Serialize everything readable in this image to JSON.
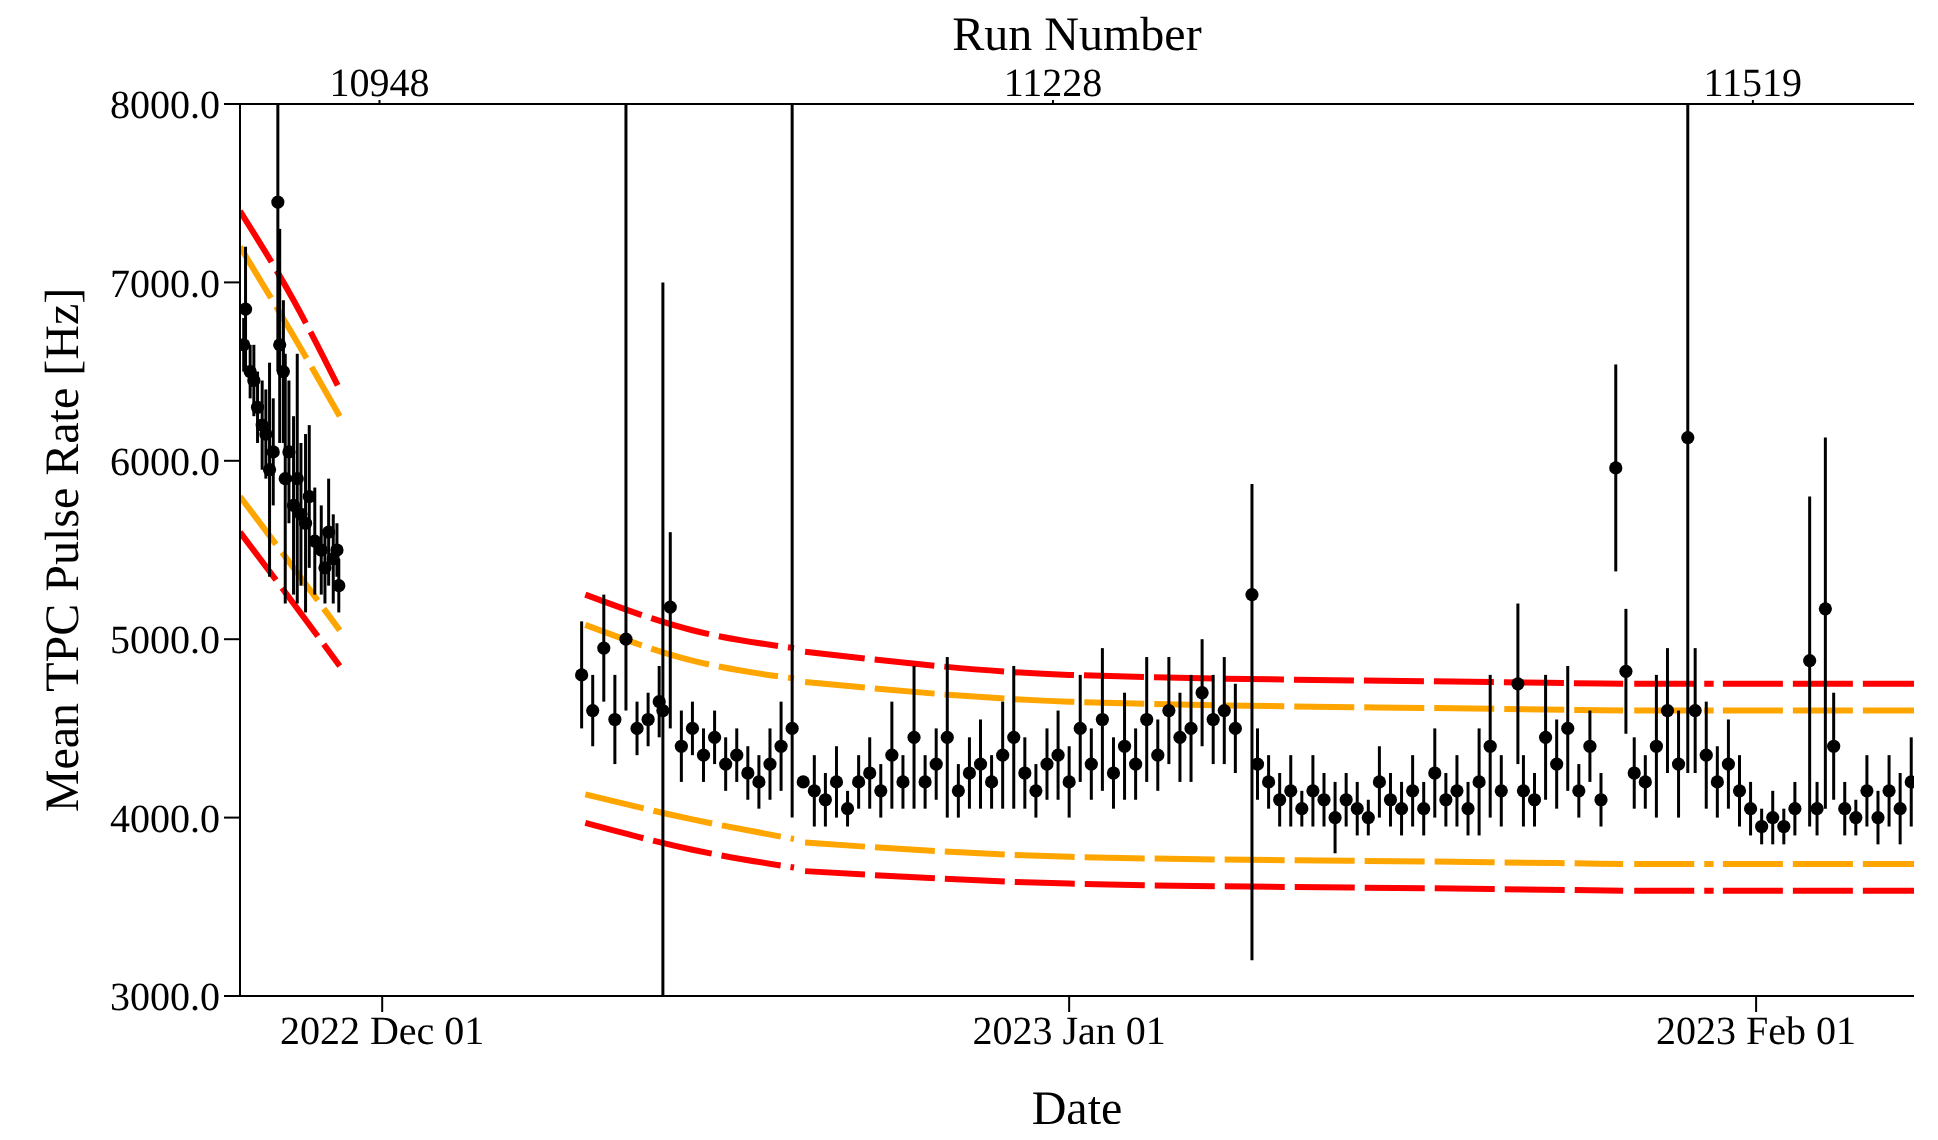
{
  "chart_data": {
    "type": "scatter",
    "xlabel": "Date",
    "ylabel": "Mean TPC Pulse Rate [Hz]",
    "x2label": "Run Number",
    "xlim": [
      "2022-11-24T14:00",
      "2023-02-08T03:00"
    ],
    "xticks": [
      {
        "value": "2022-12-01",
        "label": "2022 Dec 01"
      },
      {
        "value": "2023-01-01",
        "label": "2023 Jan 01"
      },
      {
        "value": "2023-02-01",
        "label": "2023 Feb 01"
      }
    ],
    "x2lim": [
      10890,
      11586
    ],
    "x2ticks": [
      10948,
      11228,
      11519
    ],
    "ylim": [
      3000,
      8000
    ],
    "yticks": [
      {
        "value": 3000,
        "label": "3000.0"
      },
      {
        "value": 4000,
        "label": "4000.0"
      },
      {
        "value": 5000,
        "label": "5000.0"
      },
      {
        "value": 6000,
        "label": "6000.0"
      },
      {
        "value": 7000,
        "label": "7000.0"
      },
      {
        "value": 8000,
        "label": "8000.0"
      }
    ],
    "grid": false,
    "legend": false,
    "series": [
      {
        "type": "line",
        "color": "#ff0000",
        "line_style": "dashed",
        "x": [
          "2022-11-24T14:00",
          "2022-11-27T00:00",
          "2022-11-29T02:00",
          "2022-12-05T00:00",
          "2022-12-10T04:00",
          "2022-12-15T00:00",
          "2022-12-19T14:00",
          "2022-12-19T20:00",
          "2022-12-20T02:00",
          "2023-01-01T00:00",
          "2023-01-20T00:00",
          "2023-01-26T00:00",
          "2023-01-26T06:00",
          "2023-01-26T12:00",
          "2023-01-30T02:00",
          "2023-01-30T06:00",
          "2023-01-30T12:00",
          "2023-02-08T03:00"
        ],
        "values": [
          7400,
          6900,
          6400,
          null,
          5250,
          5050,
          4950,
          null,
          4930,
          4800,
          4760,
          4750,
          null,
          4750,
          4750,
          null,
          4750,
          4750
        ]
      },
      {
        "type": "line",
        "color": "#ffa500",
        "line_style": "dashed",
        "x": [
          "2022-11-24T14:00",
          "2022-11-27T00:00",
          "2022-11-29T02:00",
          "2022-12-05T00:00",
          "2022-12-10T04:00",
          "2022-12-15T00:00",
          "2022-12-19T14:00",
          "2022-12-19T20:00",
          "2022-12-20T02:00",
          "2023-01-01T00:00",
          "2023-01-20T00:00",
          "2023-01-26T00:00",
          "2023-01-26T06:00",
          "2023-01-26T12:00",
          "2023-01-30T02:00",
          "2023-01-30T06:00",
          "2023-01-30T12:00",
          "2023-02-08T03:00"
        ],
        "values": [
          7200,
          6700,
          6250,
          null,
          5080,
          4880,
          4780,
          null,
          4760,
          4650,
          4610,
          4600,
          null,
          4600,
          4600,
          null,
          4600,
          4600
        ]
      },
      {
        "type": "line",
        "color": "#ffa500",
        "line_style": "dashed",
        "x": [
          "2022-11-24T14:00",
          "2022-11-27T00:00",
          "2022-11-29T02:00",
          "2022-12-05T00:00",
          "2022-12-10T04:00",
          "2022-12-15T00:00",
          "2022-12-19T14:00",
          "2022-12-19T20:00",
          "2022-12-20T02:00",
          "2023-01-01T00:00",
          "2023-01-20T00:00",
          "2023-01-26T00:00",
          "2023-01-26T06:00",
          "2023-01-26T12:00",
          "2023-01-30T02:00",
          "2023-01-30T06:00",
          "2023-01-30T12:00",
          "2023-02-08T03:00"
        ],
        "values": [
          5800,
          5400,
          5050,
          null,
          4130,
          3990,
          3880,
          null,
          3860,
          3780,
          3750,
          3740,
          null,
          3740,
          3740,
          null,
          3740,
          3740
        ]
      },
      {
        "type": "line",
        "color": "#ff0000",
        "line_style": "dashed",
        "x": [
          "2022-11-24T14:00",
          "2022-11-27T00:00",
          "2022-11-29T02:00",
          "2022-12-05T00:00",
          "2022-12-10T04:00",
          "2022-12-15T00:00",
          "2022-12-19T14:00",
          "2022-12-19T20:00",
          "2022-12-20T02:00",
          "2023-01-01T00:00",
          "2023-01-20T00:00",
          "2023-01-26T00:00",
          "2023-01-26T06:00",
          "2023-01-26T12:00",
          "2023-01-30T02:00",
          "2023-01-30T06:00",
          "2023-01-30T12:00",
          "2023-02-08T03:00"
        ],
        "values": [
          5600,
          5200,
          4850,
          null,
          3970,
          3820,
          3720,
          null,
          3700,
          3630,
          3600,
          3590,
          null,
          3590,
          3590,
          null,
          3590,
          3590
        ]
      },
      {
        "color": "#000000",
        "marker": "circle",
        "x": [
          "2022-11-24T18:00",
          "2022-11-24T20:00",
          "2022-11-25T01:00",
          "2022-11-25T05:00",
          "2022-11-25T09:00",
          "2022-11-25T14:00",
          "2022-11-25T18:00",
          "2022-11-25T22:00",
          "2022-11-26T02:00",
          "2022-11-26T07:00",
          "2022-11-26T09:00",
          "2022-11-26T13:00",
          "2022-11-26T15:00",
          "2022-11-26T19:00",
          "2022-11-27T00:00",
          "2022-11-27T04:00",
          "2022-11-27T08:00",
          "2022-11-27T13:00",
          "2022-11-27T17:00",
          "2022-11-27T23:00",
          "2022-11-28T06:00",
          "2022-11-28T10:00",
          "2022-11-28T14:00",
          "2022-11-28T19:00",
          "2022-11-28T23:00",
          "2022-11-29T01:00",
          "2022-12-10T00:00",
          "2022-12-10T12:00",
          "2022-12-11T00:00",
          "2022-12-11T12:00",
          "2022-12-12T00:00",
          "2022-12-12T12:00",
          "2022-12-13T00:00",
          "2022-12-13T12:00",
          "2022-12-13T16:00",
          "2022-12-14T00:00",
          "2022-12-14T12:00",
          "2022-12-15T00:00",
          "2022-12-15T12:00",
          "2022-12-16T00:00",
          "2022-12-16T12:00",
          "2022-12-17T00:00",
          "2022-12-17T12:00",
          "2022-12-18T00:00",
          "2022-12-18T12:00",
          "2022-12-19T00:00",
          "2022-12-19T12:00",
          "2022-12-20T00:00",
          "2022-12-20T12:00",
          "2022-12-21T00:00",
          "2022-12-21T12:00",
          "2022-12-22T00:00",
          "2022-12-22T12:00",
          "2022-12-23T00:00",
          "2022-12-23T12:00",
          "2022-12-24T00:00",
          "2022-12-24T12:00",
          "2022-12-25T00:00",
          "2022-12-25T12:00",
          "2022-12-26T00:00",
          "2022-12-26T12:00",
          "2022-12-27T00:00",
          "2022-12-27T12:00",
          "2022-12-28T00:00",
          "2022-12-28T12:00",
          "2022-12-29T00:00",
          "2022-12-29T12:00",
          "2022-12-30T00:00",
          "2022-12-30T12:00",
          "2022-12-31T00:00",
          "2022-12-31T12:00",
          "2023-01-01T00:00",
          "2023-01-01T12:00",
          "2023-01-02T00:00",
          "2023-01-02T12:00",
          "2023-01-03T00:00",
          "2023-01-03T12:00",
          "2023-01-04T00:00",
          "2023-01-04T12:00",
          "2023-01-05T00:00",
          "2023-01-05T12:00",
          "2023-01-06T00:00",
          "2023-01-06T12:00",
          "2023-01-07T00:00",
          "2023-01-07T12:00",
          "2023-01-08T00:00",
          "2023-01-08T12:00",
          "2023-01-09T06:00",
          "2023-01-09T12:00",
          "2023-01-10T00:00",
          "2023-01-10T12:00",
          "2023-01-11T00:00",
          "2023-01-11T12:00",
          "2023-01-12T00:00",
          "2023-01-12T12:00",
          "2023-01-13T00:00",
          "2023-01-13T12:00",
          "2023-01-14T00:00",
          "2023-01-14T12:00",
          "2023-01-15T00:00",
          "2023-01-15T12:00",
          "2023-01-16T00:00",
          "2023-01-16T12:00",
          "2023-01-17T00:00",
          "2023-01-17T12:00",
          "2023-01-18T00:00",
          "2023-01-18T12:00",
          "2023-01-19T00:00",
          "2023-01-19T12:00",
          "2023-01-20T00:00",
          "2023-01-20T12:00",
          "2023-01-21T06:00",
          "2023-01-21T12:00",
          "2023-01-22T00:00",
          "2023-01-22T12:00",
          "2023-01-23T00:00",
          "2023-01-23T12:00",
          "2023-01-24T00:00",
          "2023-01-24T12:00",
          "2023-01-25T00:00",
          "2023-01-25T16:00",
          "2023-01-26T03:00",
          "2023-01-26T12:00",
          "2023-01-27T00:00",
          "2023-01-27T12:00",
          "2023-01-28T00:00",
          "2023-01-28T12:00",
          "2023-01-28T22:00",
          "2023-01-29T06:00",
          "2023-01-29T18:00",
          "2023-01-30T06:00",
          "2023-01-30T18:00",
          "2023-01-31T06:00",
          "2023-01-31T18:00",
          "2023-02-01T06:00",
          "2023-02-01T18:00",
          "2023-02-02T06:00",
          "2023-02-02T18:00",
          "2023-02-03T10:00",
          "2023-02-03T18:00",
          "2023-02-04T03:00",
          "2023-02-04T12:00",
          "2023-02-05T00:00",
          "2023-02-05T12:00",
          "2023-02-06T00:00",
          "2023-02-06T12:00",
          "2023-02-07T00:00",
          "2023-02-07T12:00",
          "2023-02-08T00:00"
        ],
        "values": [
          6650,
          6850,
          6500,
          6450,
          6300,
          6200,
          6150,
          5950,
          6050,
          7450,
          6650,
          6500,
          5900,
          6050,
          5750,
          5900,
          5700,
          5650,
          5800,
          5550,
          5500,
          5400,
          5600,
          5450,
          5500,
          5300,
          4800,
          4600,
          4950,
          4550,
          5000,
          4500,
          4550,
          4650,
          4600,
          5180,
          4400,
          4500,
          4350,
          4450,
          4300,
          4350,
          4250,
          4200,
          4300,
          4400,
          4500,
          4200,
          4150,
          4100,
          4200,
          4050,
          4200,
          4250,
          4150,
          4350,
          4200,
          4450,
          4200,
          4300,
          4450,
          4150,
          4250,
          4300,
          4200,
          4350,
          4450,
          4250,
          4150,
          4300,
          4350,
          4200,
          4500,
          4300,
          4550,
          4250,
          4400,
          4300,
          4550,
          4350,
          4600,
          4450,
          4500,
          4700,
          4550,
          4600,
          4500,
          5250,
          4300,
          4200,
          4100,
          4150,
          4050,
          4150,
          4100,
          4000,
          4100,
          4050,
          4000,
          4200,
          4100,
          4050,
          4150,
          4050,
          4250,
          4100,
          4150,
          4050,
          4200,
          4400,
          4150,
          4750,
          4150,
          4100,
          4450,
          4300,
          4500,
          4150,
          4400,
          4100,
          5960,
          4820,
          4250,
          4200,
          4400,
          4600,
          4300,
          6130,
          4600,
          4350,
          4200,
          4300,
          4150,
          4050,
          3950,
          4000,
          3950,
          4050,
          4880,
          4050,
          5170,
          4400,
          4050,
          4000,
          4150,
          4000,
          4150,
          4050,
          4200
        ],
        "errors": [
          150,
          350,
          150,
          200,
          200,
          250,
          250,
          600,
          300,
          [
            6500,
            8000
          ],
          [
            6100,
            7300
          ],
          400,
          700,
          400,
          500,
          700,
          400,
          500,
          400,
          300,
          250,
          200,
          300,
          250,
          150,
          150,
          300,
          200,
          300,
          250,
          [
            4600,
            8000
          ],
          150,
          150,
          200,
          [
            3000,
            7000
          ],
          [
            4500,
            5600
          ],
          200,
          150,
          150,
          150,
          150,
          150,
          150,
          150,
          200,
          250,
          [
            4000,
            8000
          ],
          null,
          200,
          150,
          200,
          100,
          150,
          200,
          150,
          300,
          150,
          400,
          150,
          200,
          450,
          150,
          200,
          250,
          150,
          300,
          400,
          200,
          150,
          200,
          250,
          200,
          300,
          200,
          400,
          200,
          300,
          200,
          350,
          200,
          300,
          250,
          300,
          300,
          250,
          300,
          250,
          [
            3200,
            5870
          ],
          200,
          150,
          150,
          200,
          100,
          200,
          150,
          200,
          150,
          150,
          100,
          200,
          150,
          150,
          200,
          150,
          250,
          150,
          200,
          150,
          300,
          400,
          200,
          450,
          200,
          150,
          350,
          250,
          350,
          150,
          200,
          150,
          580,
          350,
          200,
          150,
          400,
          350,
          300,
          [
            4250,
            8000
          ],
          350,
          300,
          200,
          250,
          200,
          150,
          100,
          150,
          100,
          150,
          [
            3950,
            5800
          ],
          150,
          [
            4050,
            6130
          ],
          300,
          150,
          100,
          200,
          150,
          200,
          200,
          250
        ]
      }
    ]
  }
}
